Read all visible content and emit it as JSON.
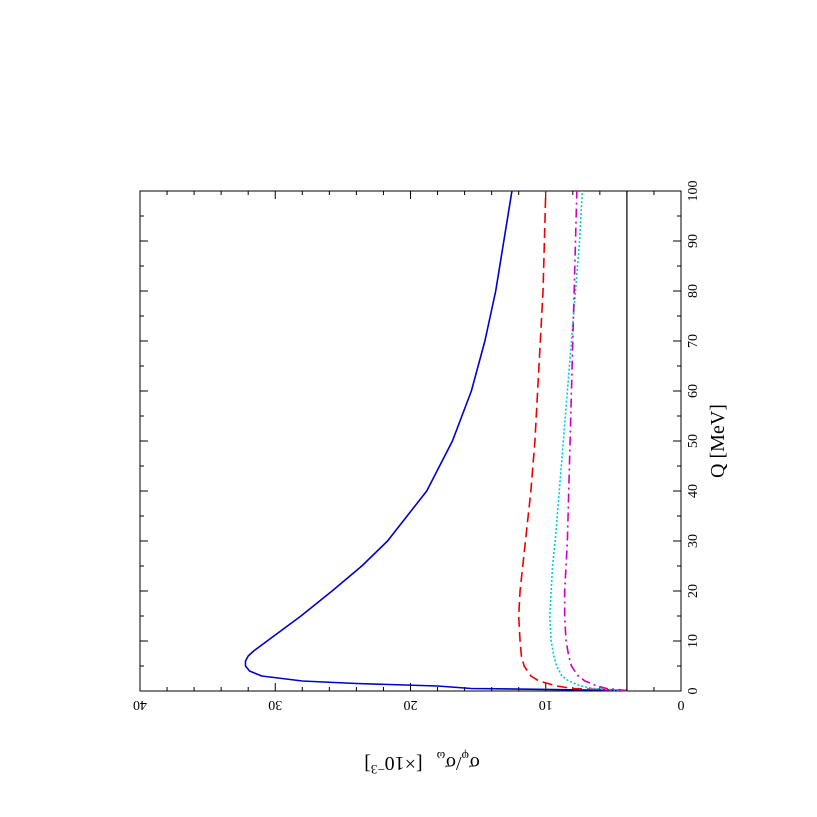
{
  "chart_data": {
    "type": "line",
    "orientation": "rotated-90-clockwise",
    "xlabel": "Q [MeV]",
    "ylabel_main": "σ",
    "ylabel_sub1": "φ",
    "ylabel_sub2": "ω",
    "ylabel_slash": "/σ",
    "ylabel_units": "[×10",
    "ylabel_exp": "−3",
    "ylabel_close": "]",
    "xlim": [
      0,
      100
    ],
    "ylim": [
      0,
      40
    ],
    "xticks": [
      "0",
      "10",
      "20",
      "30",
      "40",
      "50",
      "60",
      "70",
      "80",
      "90",
      "100"
    ],
    "yticks": [
      "0",
      "10",
      "20",
      "30",
      "40"
    ],
    "grid": false,
    "series": [
      {
        "color": "#0000cc",
        "style": "solid",
        "x": [
          0.1,
          0.5,
          1,
          1.5,
          2,
          3,
          4,
          5,
          6,
          7,
          8,
          10,
          12,
          15,
          20,
          25,
          30,
          40,
          50,
          60,
          70,
          80,
          90,
          100
        ],
        "y": [
          4.0,
          15.5,
          18.0,
          24.0,
          28.0,
          31.0,
          31.9,
          32.2,
          32.2,
          32.0,
          31.6,
          30.6,
          29.6,
          28.1,
          25.8,
          23.6,
          21.7,
          18.8,
          16.9,
          15.5,
          14.5,
          13.7,
          13.1,
          12.5
        ]
      },
      {
        "color": "#ee0000",
        "style": "dashed",
        "x": [
          0.1,
          0.5,
          1,
          2,
          3,
          5,
          7,
          10,
          15,
          20,
          25,
          30,
          40,
          50,
          60,
          70,
          80,
          90,
          100
        ],
        "y": [
          4.0,
          8.0,
          9.2,
          10.5,
          11.1,
          11.6,
          11.8,
          11.9,
          12.0,
          11.9,
          11.7,
          11.5,
          11.1,
          10.8,
          10.6,
          10.4,
          10.2,
          10.1,
          10.0
        ]
      },
      {
        "color": "#00cccc",
        "style": "dotted",
        "x": [
          0.1,
          0.5,
          1,
          2,
          3,
          5,
          7,
          10,
          15,
          20,
          25,
          30,
          40,
          50,
          60,
          70,
          80,
          90,
          100
        ],
        "y": [
          4.0,
          6.5,
          7.4,
          8.3,
          8.8,
          9.2,
          9.4,
          9.6,
          9.7,
          9.6,
          9.5,
          9.3,
          9.0,
          8.7,
          8.4,
          8.1,
          7.8,
          7.5,
          7.3
        ]
      },
      {
        "color": "#cc00cc",
        "style": "dashdot",
        "x": [
          0.1,
          0.5,
          1,
          2,
          3,
          5,
          7,
          10,
          15,
          20,
          25,
          30,
          40,
          50,
          60,
          70,
          80,
          90,
          100
        ],
        "y": [
          4.0,
          5.5,
          6.2,
          7.1,
          7.6,
          8.1,
          8.3,
          8.5,
          8.6,
          8.6,
          8.5,
          8.4,
          8.3,
          8.2,
          8.1,
          8.0,
          7.9,
          7.8,
          7.7
        ]
      },
      {
        "color": "#000000",
        "style": "solid",
        "x": [
          0,
          100
        ],
        "y": [
          4.0,
          4.0
        ]
      }
    ]
  }
}
